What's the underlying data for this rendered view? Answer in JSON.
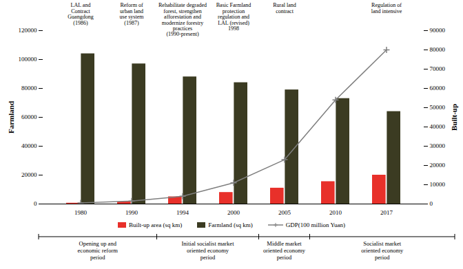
{
  "chart_data": {
    "type": "bar",
    "categories": [
      "1980",
      "1990",
      "1994",
      "2000",
      "2005",
      "2010",
      "2017"
    ],
    "series": [
      {
        "name": "Built-up area (sq km)",
        "color": "#e8302a",
        "values": [
          600,
          1500,
          5000,
          8000,
          11000,
          15500,
          20000
        ]
      },
      {
        "name": "Farmland (sq km)",
        "color": "#3b3b22",
        "values": [
          104000,
          97000,
          88000,
          84000,
          79000,
          73000,
          64000
        ]
      },
      {
        "name": "GDP(100 million Yuan)",
        "type": "line",
        "axis": "y2",
        "color": "#7f7f7f",
        "marker": "plus",
        "values": [
          500,
          1500,
          4000,
          11000,
          23000,
          54000,
          80000
        ]
      }
    ],
    "y_label": "Farmland",
    "y2_label": "Built-up",
    "ylim": [
      0,
      120000
    ],
    "yticks": [
      0,
      20000,
      40000,
      60000,
      80000,
      100000,
      120000
    ],
    "y2lim": [
      0,
      90000
    ],
    "y2ticks": [
      0,
      10000,
      20000,
      30000,
      40000,
      50000,
      60000,
      70000,
      80000,
      90000
    ],
    "annotations": [
      {
        "category": "1980",
        "text": "LAL and\nContract\nGuangdong\n(1986)"
      },
      {
        "category": "1990",
        "text": "Reform of\nurban land\nuse system\n(1987)"
      },
      {
        "category": "1994",
        "text": "Rehabilitate degraded\nforest, strengthen\nafforestation and\nmodernize forestry\npractices\n(1990-present)"
      },
      {
        "category": "2000",
        "text": "Basic Farmland\nprotection\nregulation and\nLAL (revised)\n1998"
      },
      {
        "category": "2005",
        "text": "Rural land\ncontract"
      },
      {
        "category": "2017",
        "text": "Regulation of\nland intensive"
      }
    ],
    "periods": [
      {
        "text": "Opening up and\neconomic reform\nperiod",
        "from": "1980",
        "to": "1990"
      },
      {
        "text": "Initial socialist market\noriented economy\nperiod",
        "from": "1994",
        "to": "2000"
      },
      {
        "text": "Middle market\noriented economy\nperiod",
        "from": "2005",
        "to": "2005"
      },
      {
        "text": "Socialist market\noriented economy\nperiod",
        "from": "2010",
        "to": "2017"
      }
    ]
  }
}
